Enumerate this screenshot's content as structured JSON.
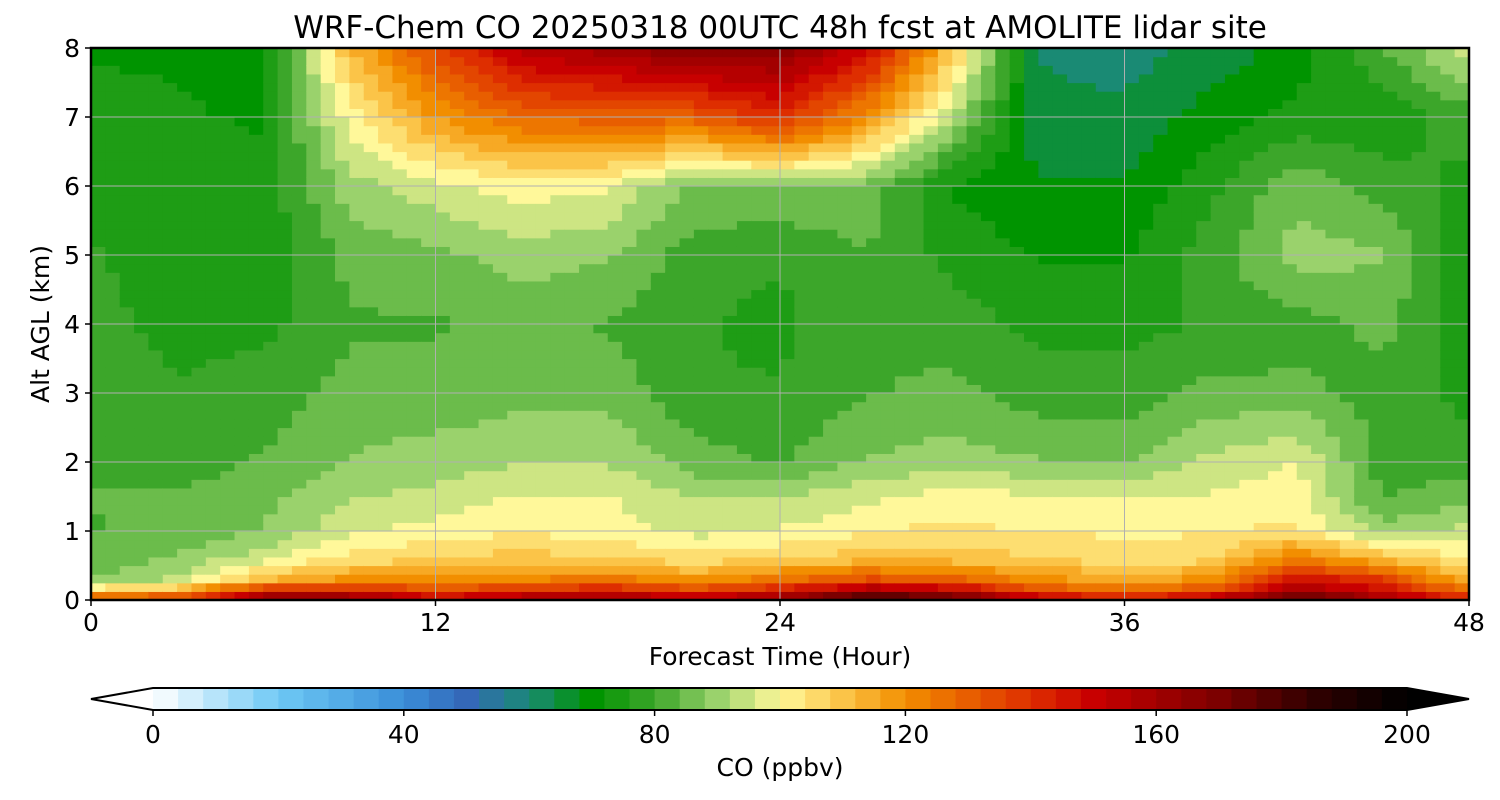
{
  "chart_data": {
    "type": "heatmap",
    "title": "WRF-Chem CO  20250318 00UTC 48h fcst at AMOLITE lidar site",
    "xlabel": "Forecast Time (Hour)",
    "ylabel": "Alt AGL (km)",
    "xlim": [
      0,
      48
    ],
    "ylim": [
      0,
      8
    ],
    "xticks": [
      0,
      12,
      24,
      36,
      48
    ],
    "yticks": [
      0,
      1,
      2,
      3,
      4,
      5,
      6,
      7,
      8
    ],
    "grid": true,
    "colorbar": {
      "label": "CO  (ppbv)",
      "orientation": "horizontal",
      "placement": "bottom",
      "range": [
        0,
        200
      ],
      "ticks": [
        0,
        40,
        80,
        120,
        160,
        200
      ],
      "extend": "both",
      "colors": [
        {
          "v": 0,
          "c": "#ffffff"
        },
        {
          "v": 20,
          "c": "#6ec9f5"
        },
        {
          "v": 40,
          "c": "#3a8ed8"
        },
        {
          "v": 50,
          "c": "#3468b8"
        },
        {
          "v": 60,
          "c": "#1a8a74"
        },
        {
          "v": 70,
          "c": "#009400"
        },
        {
          "v": 80,
          "c": "#3ca62a"
        },
        {
          "v": 90,
          "c": "#9ad26c"
        },
        {
          "v": 100,
          "c": "#fff89a"
        },
        {
          "v": 110,
          "c": "#fbc448"
        },
        {
          "v": 120,
          "c": "#f28e00"
        },
        {
          "v": 140,
          "c": "#de2e00"
        },
        {
          "v": 150,
          "c": "#c80000"
        },
        {
          "v": 170,
          "c": "#7c0000"
        },
        {
          "v": 185,
          "c": "#300000"
        },
        {
          "v": 200,
          "c": "#000000"
        }
      ]
    },
    "times": [
      0,
      3,
      6,
      9,
      12,
      15,
      18,
      21,
      24,
      27,
      30,
      33,
      36,
      39,
      42,
      45,
      48
    ],
    "heights": [
      0,
      0.1,
      0.3,
      0.6,
      1.0,
      1.5,
      2.0,
      3.0,
      4.0,
      5.0,
      6.0,
      7.0,
      8.0
    ],
    "values": [
      [
        140,
        112,
        88,
        84,
        82,
        83,
        80,
        81,
        79,
        78,
        76,
        74,
        72
      ],
      [
        150,
        118,
        94,
        88,
        84,
        83,
        80,
        78,
        76,
        75,
        74,
        73,
        72
      ],
      [
        175,
        150,
        112,
        96,
        88,
        86,
        83,
        80,
        76,
        74,
        74,
        72,
        70
      ],
      [
        170,
        150,
        120,
        104,
        96,
        92,
        88,
        84,
        82,
        84,
        90,
        100,
        112
      ],
      [
        155,
        140,
        118,
        108,
        100,
        94,
        90,
        84,
        82,
        86,
        96,
        118,
        135
      ],
      [
        165,
        145,
        122,
        110,
        102,
        98,
        92,
        86,
        84,
        90,
        100,
        128,
        155
      ],
      [
        170,
        150,
        125,
        108,
        100,
        98,
        92,
        86,
        82,
        88,
        98,
        130,
        160
      ],
      [
        160,
        140,
        118,
        104,
        96,
        92,
        85,
        78,
        78,
        80,
        86,
        130,
        168
      ],
      [
        170,
        150,
        126,
        108,
        98,
        92,
        82,
        78,
        76,
        78,
        88,
        140,
        166
      ],
      [
        190,
        168,
        134,
        110,
        102,
        96,
        88,
        82,
        82,
        82,
        86,
        120,
        150
      ],
      [
        185,
        160,
        130,
        110,
        104,
        100,
        90,
        84,
        80,
        76,
        72,
        92,
        110
      ],
      [
        160,
        138,
        120,
        108,
        102,
        98,
        88,
        80,
        76,
        72,
        68,
        64,
        62
      ],
      [
        150,
        130,
        115,
        104,
        102,
        98,
        86,
        80,
        76,
        72,
        68,
        64,
        60
      ],
      [
        160,
        138,
        120,
        106,
        102,
        98,
        94,
        84,
        78,
        80,
        76,
        70,
        64
      ],
      [
        185,
        165,
        148,
        124,
        104,
        100,
        98,
        84,
        80,
        90,
        86,
        74,
        70
      ],
      [
        165,
        150,
        138,
        112,
        90,
        82,
        80,
        80,
        84,
        88,
        80,
        74,
        82
      ],
      [
        150,
        130,
        112,
        102,
        94,
        86,
        80,
        76,
        74,
        74,
        76,
        80,
        96
      ]
    ]
  }
}
